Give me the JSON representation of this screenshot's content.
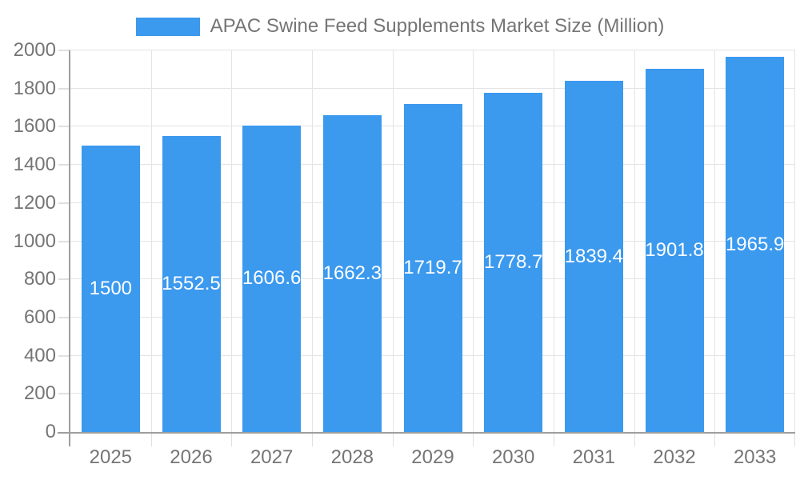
{
  "legend": {
    "label": "APAC Swine Feed Supplements Market Size (Million)"
  },
  "chart_data": {
    "type": "bar",
    "title": "APAC Swine Feed Supplements Market Size (Million)",
    "xlabel": "",
    "ylabel": "",
    "categories": [
      "2025",
      "2026",
      "2027",
      "2028",
      "2029",
      "2030",
      "2031",
      "2032",
      "2033"
    ],
    "values": [
      1500,
      1552.5,
      1606.6,
      1662.3,
      1719.7,
      1778.7,
      1839.4,
      1901.8,
      1965.9
    ],
    "bar_labels": [
      "1500",
      "1552.5",
      "1606.6",
      "1662.3",
      "1719.7",
      "1778.7",
      "1839.4",
      "1901.8",
      "1965.9"
    ],
    "ylim": [
      0,
      2000
    ],
    "ytick_interval": 200,
    "yticks": [
      "0",
      "200",
      "400",
      "600",
      "800",
      "1000",
      "1200",
      "1400",
      "1600",
      "1800",
      "2000"
    ],
    "grid": true,
    "legend_position": "top",
    "bar_label_position": "center"
  },
  "colors": {
    "bar": "#3B99EE",
    "bar_label": "#FFFFFF",
    "axis_line": "#9E9E9E",
    "gridline": "#E4E4E4",
    "tick": "#E0E0E0",
    "label_text": "#757575",
    "background": "#FFFFFF"
  }
}
